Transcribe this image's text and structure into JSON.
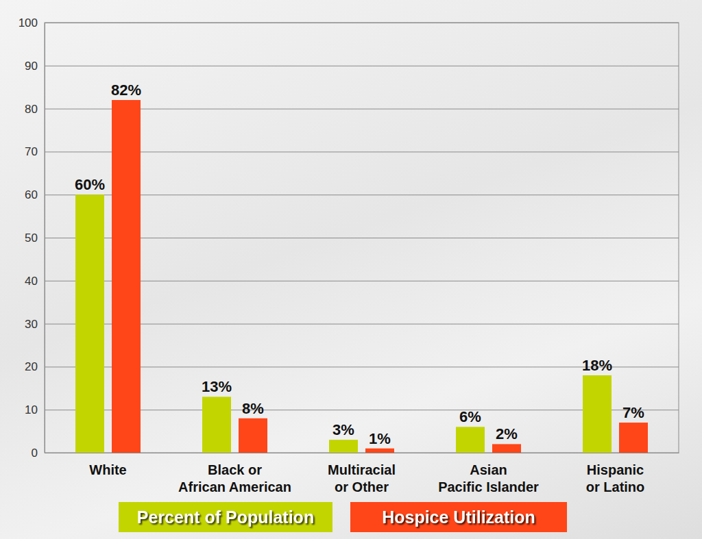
{
  "chart_data": {
    "type": "bar",
    "categories": [
      "White",
      "Black or\nAfrican American",
      "Multiracial\nor Other",
      "Asian\nPacific Islander",
      "Hispanic\nor Latino"
    ],
    "series": [
      {
        "name": "Percent of Population",
        "color": "#c3d500",
        "values": [
          60,
          13,
          3,
          6,
          18
        ],
        "value_labels": [
          "60%",
          "13%",
          "3%",
          "6%",
          "18%"
        ]
      },
      {
        "name": "Hospice Utilization",
        "color": "#ff4619",
        "values": [
          82,
          8,
          1,
          2,
          7
        ],
        "value_labels": [
          "82%",
          "8%",
          "1%",
          "2%",
          "7%"
        ]
      }
    ],
    "ylim": [
      0,
      100
    ],
    "yticks": [
      0,
      10,
      20,
      30,
      40,
      50,
      60,
      70,
      80,
      90,
      100
    ],
    "grid": true,
    "legend": "bottom",
    "data_labels": true
  }
}
